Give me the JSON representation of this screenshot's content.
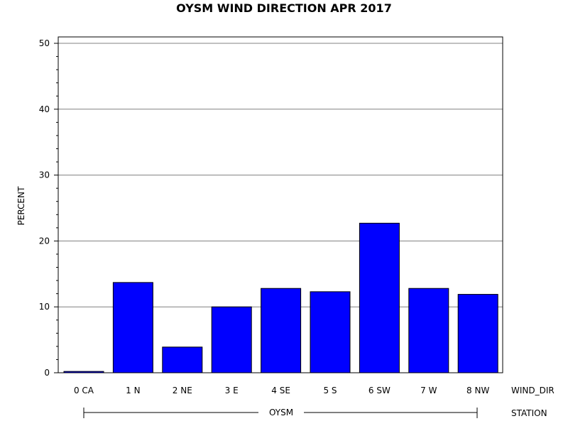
{
  "chart_data": {
    "type": "bar",
    "title": "OYSM WIND DIRECTION APR 2017",
    "ylabel": "PERCENT",
    "xlabel": "WIND_DIR",
    "group_axis_label": "STATION",
    "group_label": "OYSM",
    "categories": [
      "0 CA",
      "1 N",
      "2 NE",
      "3 E",
      "4 SE",
      "5 S",
      "6 SW",
      "7 W",
      "8 NW"
    ],
    "values": [
      0.2,
      13.7,
      3.9,
      10.0,
      12.8,
      12.3,
      22.7,
      12.8,
      11.9
    ],
    "ylim": [
      0,
      50
    ],
    "yticks": [
      "0",
      "10",
      "20",
      "30",
      "40",
      "50"
    ],
    "grid": true,
    "bar_color": "#0000ff"
  }
}
